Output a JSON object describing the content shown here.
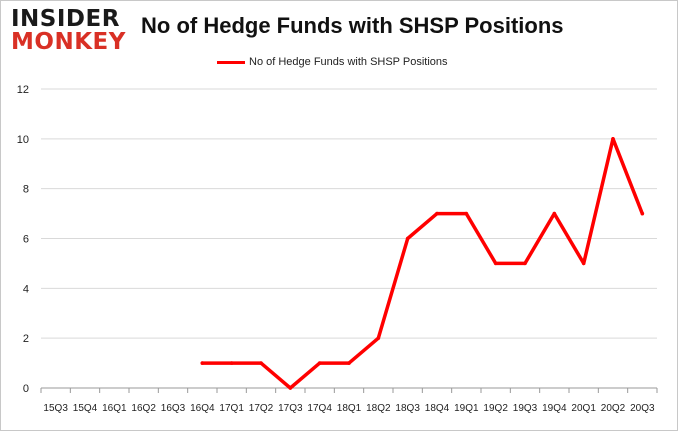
{
  "logo": {
    "line1": "INSIDER",
    "line2": "MONKEY"
  },
  "chart_data": {
    "type": "line",
    "title": "No of Hedge Funds with SHSP Positions",
    "categories": [
      "15Q3",
      "15Q4",
      "16Q1",
      "16Q2",
      "16Q3",
      "16Q4",
      "17Q1",
      "17Q2",
      "17Q3",
      "17Q4",
      "18Q1",
      "18Q2",
      "18Q3",
      "18Q4",
      "19Q1",
      "19Q2",
      "19Q3",
      "19Q4",
      "20Q1",
      "20Q2",
      "20Q3"
    ],
    "series": [
      {
        "name": "No of Hedge Funds with SHSP Positions",
        "color": "#ff0000",
        "values": [
          null,
          null,
          null,
          null,
          null,
          1,
          1,
          1,
          0,
          1,
          1,
          2,
          6,
          7,
          7,
          5,
          5,
          7,
          5,
          10,
          7
        ]
      }
    ],
    "ylim": [
      0,
      12
    ],
    "yticks": [
      0,
      2,
      4,
      6,
      8,
      10,
      12
    ],
    "xlabel": "",
    "ylabel": "",
    "grid": true,
    "legend": "top"
  }
}
